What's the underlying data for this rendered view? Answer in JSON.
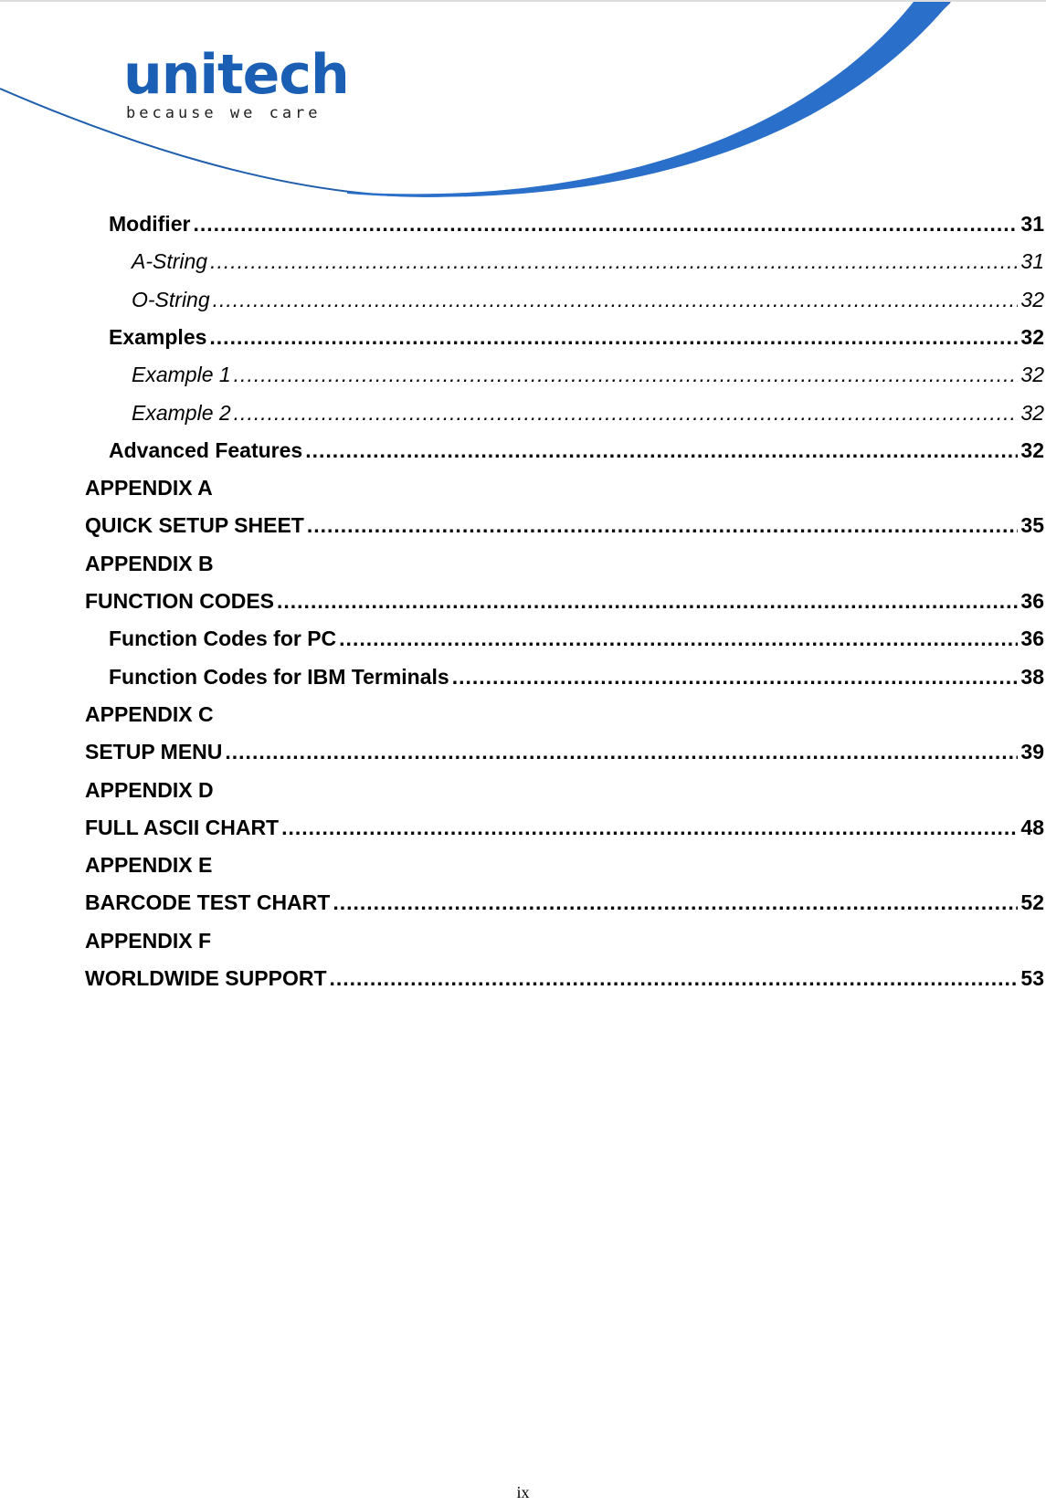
{
  "header": {
    "logo_text": "unitech",
    "tagline": "because we care",
    "brand_color": "#1a5fb4",
    "swoosh_color": "#2a6fc9"
  },
  "toc": [
    {
      "level": 2,
      "title": "Modifier",
      "page": "31"
    },
    {
      "level": 3,
      "title": "A-String",
      "page": "31"
    },
    {
      "level": 3,
      "title": "O-String",
      "page": "32"
    },
    {
      "level": 2,
      "title": "Examples",
      "page": "32"
    },
    {
      "level": 3,
      "title": "Example 1",
      "page": "32"
    },
    {
      "level": 3,
      "title": "Example 2",
      "page": "32"
    },
    {
      "level": 2,
      "title": "Advanced Features",
      "page": "32"
    },
    {
      "level": 1,
      "title": "APPENDIX A",
      "page": ""
    },
    {
      "level": 1,
      "title": "QUICK SETUP SHEET",
      "page": "35"
    },
    {
      "level": 1,
      "title": "APPENDIX B",
      "page": ""
    },
    {
      "level": 1,
      "title": "FUNCTION CODES",
      "page": "36"
    },
    {
      "level": 2,
      "title": "Function Codes for PC",
      "page": "36"
    },
    {
      "level": 2,
      "title": "Function Codes for IBM Terminals",
      "page": "38"
    },
    {
      "level": 1,
      "title": "APPENDIX C",
      "page": ""
    },
    {
      "level": 1,
      "title": "SETUP MENU",
      "page": "39"
    },
    {
      "level": 1,
      "title": "APPENDIX D",
      "page": ""
    },
    {
      "level": 1,
      "title": "FULL ASCII CHART",
      "page": "48"
    },
    {
      "level": 1,
      "title": "APPENDIX E",
      "page": ""
    },
    {
      "level": 1,
      "title": "BARCODE TEST CHART",
      "page": "52"
    },
    {
      "level": 1,
      "title": "APPENDIX F",
      "page": ""
    },
    {
      "level": 1,
      "title": "WORLDWIDE SUPPORT",
      "page": "53"
    }
  ],
  "footer": {
    "page_number": "ix"
  }
}
